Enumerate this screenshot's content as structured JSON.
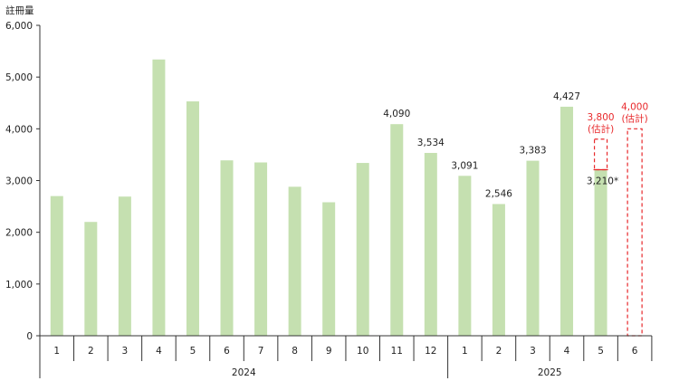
{
  "chart_data": {
    "type": "bar",
    "ylabel": "註冊量",
    "ylim": [
      0,
      6000
    ],
    "yticks": [
      "0",
      "1,000",
      "2,000",
      "3,000",
      "4,000",
      "5,000",
      "6,000"
    ],
    "grid": false,
    "categories": [
      "1",
      "2",
      "3",
      "4",
      "5",
      "6",
      "7",
      "8",
      "9",
      "10",
      "11",
      "12",
      "1",
      "2",
      "3",
      "4",
      "5",
      "6"
    ],
    "years": [
      {
        "label": "2024",
        "span": 12
      },
      {
        "label": "2025",
        "span": 6
      }
    ],
    "values": [
      2700,
      2200,
      2690,
      5340,
      4530,
      3390,
      3350,
      2880,
      2580,
      3340,
      4090,
      3534,
      3091,
      2546,
      3383,
      4427,
      3210,
      null
    ],
    "data_labels": [
      {
        "index": 10,
        "text": "4,090"
      },
      {
        "index": 11,
        "text": "3,534"
      },
      {
        "index": 12,
        "text": "3,091"
      },
      {
        "index": 13,
        "text": "2,546"
      },
      {
        "index": 14,
        "text": "3,383"
      },
      {
        "index": 15,
        "text": "4,427"
      },
      {
        "index": 16,
        "text": "3,210*"
      }
    ],
    "estimates": [
      {
        "index": 16,
        "from": 3210,
        "to": 3800,
        "label_value": "3,800",
        "label_note": "(估計)"
      },
      {
        "index": 17,
        "from": 0,
        "to": 4000,
        "label_value": "4,000",
        "label_note": "(估計)"
      }
    ],
    "colors": {
      "bar": "#c5e0b0",
      "estimate": "#e8282b",
      "axis": "#333333"
    }
  }
}
